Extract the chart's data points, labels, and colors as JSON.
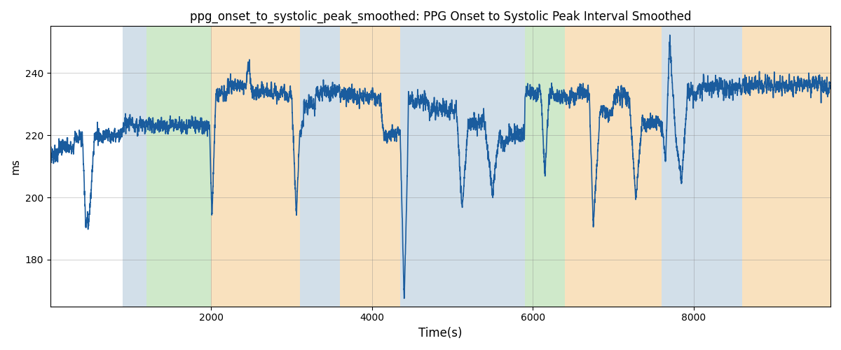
{
  "title": "ppg_onset_to_systolic_peak_smoothed: PPG Onset to Systolic Peak Interval Smoothed",
  "xlabel": "Time(s)",
  "ylabel": "ms",
  "line_color": "#1a5c9e",
  "line_width": 1.2,
  "background_regions": [
    {
      "start": 900,
      "end": 1200,
      "color": "#aec6d8",
      "alpha": 0.55
    },
    {
      "start": 1200,
      "end": 2000,
      "color": "#a8d8a0",
      "alpha": 0.55
    },
    {
      "start": 2000,
      "end": 3100,
      "color": "#f5c98a",
      "alpha": 0.55
    },
    {
      "start": 3100,
      "end": 3600,
      "color": "#aec6d8",
      "alpha": 0.55
    },
    {
      "start": 3600,
      "end": 4350,
      "color": "#f5c98a",
      "alpha": 0.55
    },
    {
      "start": 4350,
      "end": 5600,
      "color": "#aec6d8",
      "alpha": 0.55
    },
    {
      "start": 5600,
      "end": 5900,
      "color": "#aec6d8",
      "alpha": 0.55
    },
    {
      "start": 5900,
      "end": 6400,
      "color": "#a8d8a0",
      "alpha": 0.55
    },
    {
      "start": 6400,
      "end": 7600,
      "color": "#f5c98a",
      "alpha": 0.55
    },
    {
      "start": 7600,
      "end": 8600,
      "color": "#aec6d8",
      "alpha": 0.55
    },
    {
      "start": 8600,
      "end": 9700,
      "color": "#f5c98a",
      "alpha": 0.55
    }
  ],
  "xlim": [
    0,
    9700
  ],
  "ylim": [
    165,
    255
  ],
  "yticks": [
    180,
    200,
    220,
    240
  ],
  "xticks": [
    2000,
    4000,
    6000,
    8000
  ],
  "grid": true,
  "seed": 42
}
